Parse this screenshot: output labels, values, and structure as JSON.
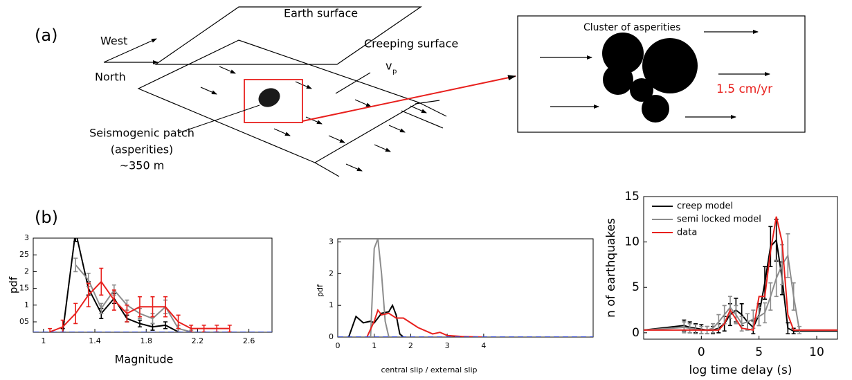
{
  "diagram": {
    "panel_a": "(a)",
    "panel_b": "(b)",
    "earth_surface": "Earth surface",
    "west": "West",
    "north": "North",
    "creeping_surface": "Creeping surface",
    "velocity": "v",
    "velocity_sub": "p",
    "patch_lines": [
      "Seismogenic patch",
      "(asperities)",
      "~350 m"
    ],
    "cluster": "Cluster of asperities",
    "rate": "1.5 cm/yr"
  },
  "chart_data": [
    {
      "type": "line",
      "xlabel": "Magnitude",
      "ylabel": "pdf",
      "xlim": [
        0.92,
        2.78
      ],
      "ylim": [
        0.19,
        3
      ],
      "xticks": [
        1,
        1.4,
        1.8,
        2.2,
        2.6
      ],
      "yticks": [
        {
          "value": 0.5,
          "label": "05"
        },
        1,
        {
          "value": 1.5,
          "label": "15"
        },
        2,
        {
          "value": 2.5,
          "label": "25"
        },
        3
      ],
      "series": [
        {
          "color": "#000000",
          "x": [
            1.15,
            1.25,
            1.35,
            1.45,
            1.55,
            1.65,
            1.75,
            1.85,
            1.95,
            2.05
          ],
          "values": [
            0.2,
            3.2,
            1.5,
            0.75,
            1.2,
            0.6,
            0.45,
            0.35,
            0.4,
            0.2
          ],
          "errors": [
            0.1,
            0.3,
            0.2,
            0.15,
            0.15,
            0.1,
            0.1,
            0.1,
            0.1,
            0.1
          ]
        },
        {
          "color": "#8c8c8c",
          "x": [
            1.25,
            1.35,
            1.45,
            1.55,
            1.65,
            1.75,
            1.85,
            1.95,
            2.05,
            2.15
          ],
          "values": [
            2.2,
            1.75,
            0.9,
            1.45,
            1.0,
            0.75,
            0.6,
            0.95,
            0.3,
            0.2
          ],
          "errors": [
            0.2,
            0.2,
            0.15,
            0.15,
            0.15,
            0.15,
            0.15,
            0.2,
            0.1,
            0.05
          ]
        },
        {
          "color": "#e8201d",
          "x": [
            1.05,
            1.15,
            1.25,
            1.35,
            1.45,
            1.55,
            1.65,
            1.75,
            1.85,
            1.95,
            2.05,
            2.15,
            2.25,
            2.35,
            2.45
          ],
          "values": [
            0.2,
            0.35,
            0.75,
            1.3,
            1.7,
            1.15,
            0.75,
            0.95,
            0.95,
            0.95,
            0.5,
            0.3,
            0.3,
            0.3,
            0.3
          ],
          "errors": [
            0.1,
            0.2,
            0.3,
            0.35,
            0.4,
            0.3,
            0.25,
            0.3,
            0.3,
            0.3,
            0.2,
            0.1,
            0.1,
            0.1,
            0.1
          ]
        },
        {
          "color": "#3b4fd0",
          "dashed": true,
          "x": [
            0.92,
            2.78
          ],
          "values": [
            0.19,
            0.19
          ]
        }
      ]
    },
    {
      "type": "line",
      "xlabel": "central slip / external slip",
      "ylabel": "pdf",
      "xlim": [
        0,
        7
      ],
      "ylim": [
        0,
        3.1
      ],
      "xticks": [
        0,
        1,
        2,
        3,
        4
      ],
      "yticks": [
        0,
        1,
        2,
        3
      ],
      "series": [
        {
          "color": "#000000",
          "x": [
            0.3,
            0.5,
            0.7,
            0.9,
            1.0,
            1.2,
            1.4,
            1.5,
            1.6,
            1.7,
            1.8
          ],
          "values": [
            0,
            0.65,
            0.45,
            0.5,
            0.45,
            0.75,
            0.8,
            1.0,
            0.7,
            0.1,
            0
          ]
        },
        {
          "color": "#8c8c8c",
          "x": [
            0.9,
            1.0,
            1.1,
            1.2,
            1.3,
            1.4
          ],
          "values": [
            0,
            2.8,
            3.1,
            2.0,
            0.5,
            0
          ]
        },
        {
          "color": "#e8201d",
          "x": [
            0.8,
            1.0,
            1.1,
            1.2,
            1.4,
            1.6,
            1.8,
            2.0,
            2.2,
            2.4,
            2.6,
            2.8,
            3.0,
            3.4,
            4.0
          ],
          "values": [
            0,
            0.5,
            0.85,
            0.7,
            0.75,
            0.6,
            0.6,
            0.45,
            0.3,
            0.2,
            0.1,
            0.15,
            0.05,
            0.02,
            0
          ]
        },
        {
          "color": "#3b4fd0",
          "dashed": true,
          "x": [
            0,
            7
          ],
          "values": [
            0,
            0
          ]
        }
      ]
    },
    {
      "type": "line",
      "xlabel": "log time delay (s)",
      "ylabel": "n of earthquakes",
      "xlim": [
        -5,
        11.8
      ],
      "ylim": [
        -0.7,
        15
      ],
      "xticks": [
        0,
        5,
        10
      ],
      "yticks": [
        0,
        5,
        10,
        15
      ],
      "series": [
        {
          "name": "creep model",
          "color": "#000000",
          "x": [
            -5,
            -1.5,
            -1,
            -0.5,
            0,
            0.5,
            1,
            1.5,
            2,
            2.5,
            3,
            3.5,
            4,
            4.5,
            5,
            5.5,
            6,
            6.5,
            7,
            7.5,
            8,
            11.8
          ],
          "values": [
            0.3,
            0.8,
            0.6,
            0.5,
            0.4,
            0.3,
            0.3,
            0.5,
            1.0,
            2.0,
            2.5,
            2.0,
            1.2,
            0.6,
            2.0,
            5.5,
            9.5,
            10.2,
            6.0,
            0.5,
            0.2,
            0.2
          ],
          "errors": [
            0,
            0.6,
            0.6,
            0.5,
            0.5,
            0.4,
            0.4,
            0.5,
            0.8,
            1.2,
            1.3,
            1.2,
            0.9,
            0.7,
            1.2,
            1.8,
            2.2,
            2.3,
            1.8,
            0.6,
            0.3,
            0
          ]
        },
        {
          "name": "semi locked model",
          "color": "#8c8c8c",
          "x": [
            -5,
            -1.5,
            -1,
            -0.5,
            0,
            0.5,
            1,
            1.5,
            2,
            2.5,
            3,
            3.5,
            4,
            4.5,
            5,
            5.5,
            6,
            6.5,
            7,
            7.5,
            8,
            8.5,
            11.8
          ],
          "values": [
            0.3,
            0.6,
            0.5,
            0.4,
            0.3,
            0.3,
            0.5,
            1.2,
            2.0,
            2.8,
            2.0,
            1.0,
            1.2,
            1.5,
            1.8,
            2.2,
            4.0,
            6.0,
            7.5,
            8.5,
            4.0,
            0.3,
            0.3
          ],
          "errors": [
            0,
            0.6,
            0.5,
            0.5,
            0.4,
            0.4,
            0.5,
            0.8,
            1.0,
            1.2,
            1.0,
            0.8,
            0.9,
            1.0,
            1.0,
            1.1,
            1.5,
            2.0,
            2.2,
            2.4,
            1.5,
            0.4,
            0
          ]
        },
        {
          "name": "data",
          "color": "#e8201d",
          "x": [
            -5,
            1.5,
            2,
            2.5,
            3,
            3.5,
            4,
            4.5,
            5,
            5.5,
            6,
            6.5,
            7,
            7.5,
            8,
            11.8
          ],
          "values": [
            0.3,
            0.3,
            1.0,
            2.5,
            1.5,
            0.5,
            0.4,
            0.3,
            4.0,
            4.0,
            9.0,
            12.8,
            10.0,
            2.0,
            0.3,
            0.3
          ]
        }
      ],
      "legend": "upper left"
    }
  ]
}
